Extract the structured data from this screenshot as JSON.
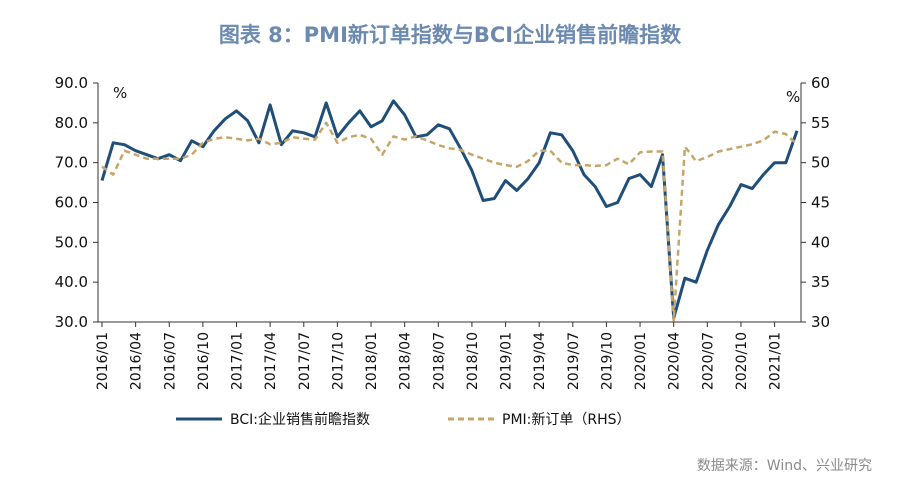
{
  "chart_data": {
    "type": "line",
    "title": "图表 8：PMI新订单指数与BCI企业销售前瞻指数",
    "source": "数据来源：Wind、兴业研究",
    "left_axis": {
      "unit": "%",
      "range": [
        30,
        90
      ],
      "ticks": [
        "90.0",
        "80.0",
        "70.0",
        "60.0",
        "50.0",
        "40.0",
        "30.0"
      ]
    },
    "right_axis": {
      "unit": "%",
      "range": [
        30,
        60
      ],
      "ticks": [
        "60",
        "55",
        "50",
        "45",
        "40",
        "35",
        "30"
      ]
    },
    "x_tick_labels": [
      "2016/01",
      "2016/04",
      "2016/07",
      "2016/10",
      "2017/01",
      "2017/04",
      "2017/07",
      "2017/10",
      "2018/01",
      "2018/04",
      "2018/07",
      "2018/10",
      "2019/01",
      "2019/04",
      "2019/07",
      "2019/10",
      "2020/01",
      "2020/04",
      "2020/07",
      "2020/10",
      "2021/01"
    ],
    "series": [
      {
        "name": "BCI:企业销售前瞻指数",
        "axis": "left",
        "color": "#1f4e79",
        "style": "solid",
        "values": [
          65.5,
          75,
          74.5,
          73,
          72,
          71,
          72,
          70.5,
          75.5,
          74,
          78,
          81,
          83,
          80.5,
          75,
          84.5,
          74.5,
          78,
          77.5,
          76.5,
          85,
          76.5,
          80,
          83,
          79,
          80.5,
          85.5,
          82,
          76.5,
          77,
          79.5,
          78.5,
          73.5,
          68,
          60.5,
          61,
          65.5,
          63,
          66,
          70,
          77.5,
          77,
          73,
          67,
          64,
          59,
          60,
          66,
          67,
          64,
          72,
          31,
          41,
          40,
          48,
          54.5,
          59,
          64.5,
          63.5,
          67,
          70,
          70,
          78
        ]
      },
      {
        "name": "PMI:新订单（RHS）",
        "axis": "right",
        "color": "#c6a56a",
        "style": "dashed",
        "values": [
          49.5,
          48.5,
          51.5,
          51,
          50.5,
          50.5,
          50.5,
          50.5,
          51,
          52.5,
          53,
          53.2,
          53,
          52.8,
          53,
          52.3,
          52.5,
          53.2,
          53,
          52.9,
          55,
          52.5,
          53.2,
          53.5,
          53,
          51,
          53.3,
          52.9,
          53.3,
          52.8,
          52.2,
          51.8,
          51.6,
          51,
          50.5,
          50,
          49.7,
          49.5,
          50.2,
          51.5,
          51.5,
          50,
          49.7,
          49.7,
          49.6,
          49.7,
          50.5,
          49.8,
          51.3,
          51.4,
          51.4,
          30.2,
          52,
          50.2,
          50.7,
          51.4,
          51.7,
          52,
          52.3,
          52.8,
          53.9,
          53.6,
          52.3
        ]
      }
    ]
  }
}
